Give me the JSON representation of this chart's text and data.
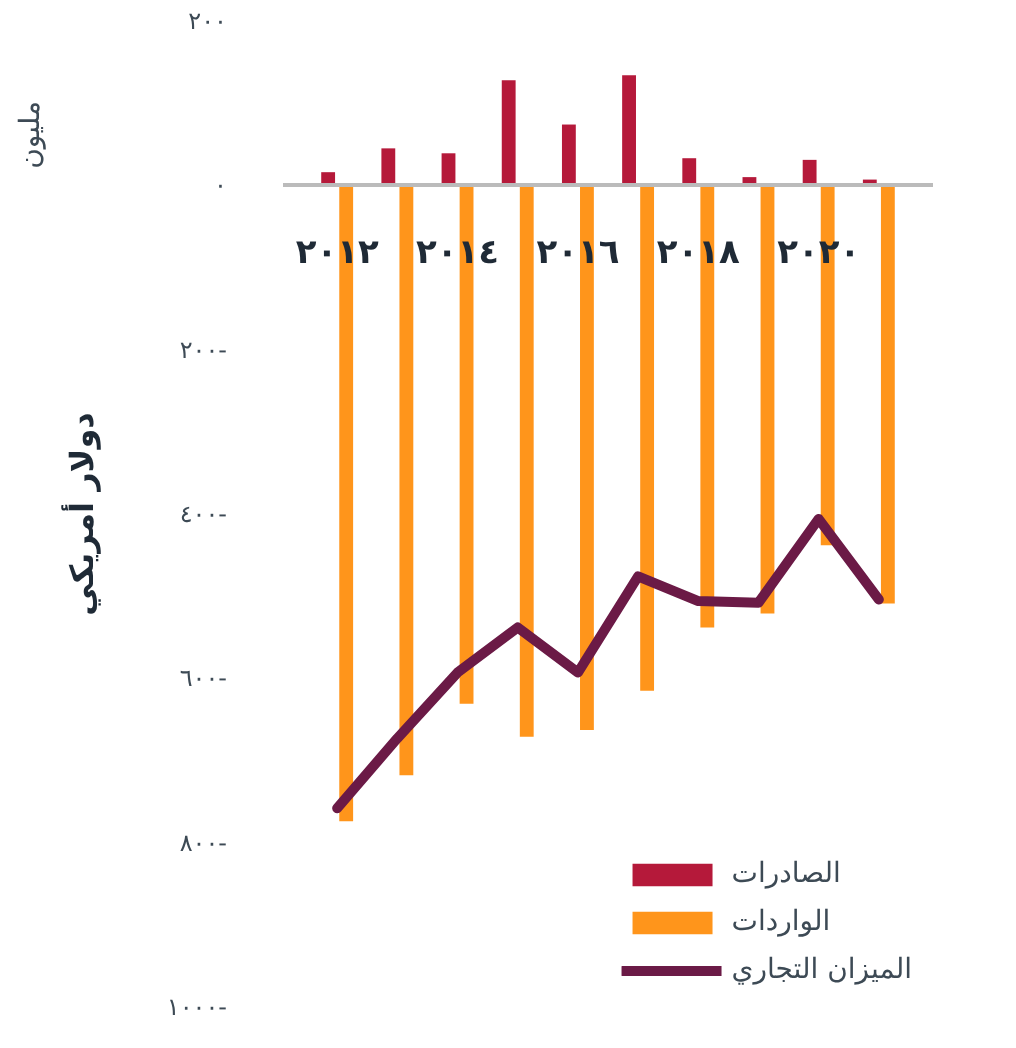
{
  "chart_data": {
    "type": "bar",
    "ylabel": "دولار أمريكي",
    "annotations": [
      "مليون"
    ],
    "x": [
      2012,
      2013,
      2014,
      2015,
      2016,
      2017,
      2018,
      2019,
      2020,
      2021
    ],
    "xlim": [
      2011.1,
      2021.9
    ],
    "xticks": [
      {
        "value": 2012,
        "label": "٢٠١٢"
      },
      {
        "value": 2014,
        "label": "٢٠١٤"
      },
      {
        "value": 2016,
        "label": "٢٠١٦"
      },
      {
        "value": 2018,
        "label": "٢٠١٨"
      },
      {
        "value": 2020,
        "label": "٢٠٢٠"
      }
    ],
    "ylim": [
      -1000,
      200
    ],
    "yticks": [
      {
        "value": 200,
        "label": "٢٠٠"
      },
      {
        "value": 0,
        "label": "٠"
      },
      {
        "value": -200,
        "label": "٢٠٠-"
      },
      {
        "value": -400,
        "label": "٤٠٠-"
      },
      {
        "value": -600,
        "label": "٦٠٠-"
      },
      {
        "value": -800,
        "label": "٨٠٠-"
      },
      {
        "value": -1000,
        "label": "١٠٠٠-"
      }
    ],
    "series": [
      {
        "name": "الصادرات",
        "color": "#b5193a",
        "values": [
          16,
          45,
          39,
          128,
          74,
          134,
          33,
          10,
          31,
          7
        ]
      },
      {
        "name": "الواردات",
        "color": "#ff951b",
        "values": [
          -774,
          -718,
          -631,
          -671,
          -663,
          -615,
          -538,
          -521,
          -438,
          -509
        ]
      },
      {
        "name": "الميزان التجاري",
        "type": "line",
        "color": "#6b1a46",
        "values": [
          -758,
          -673,
          -593,
          -538,
          -593,
          -476,
          -506,
          -508,
          -406,
          -504
        ]
      }
    ],
    "grid": false,
    "legend": "bottom right"
  }
}
